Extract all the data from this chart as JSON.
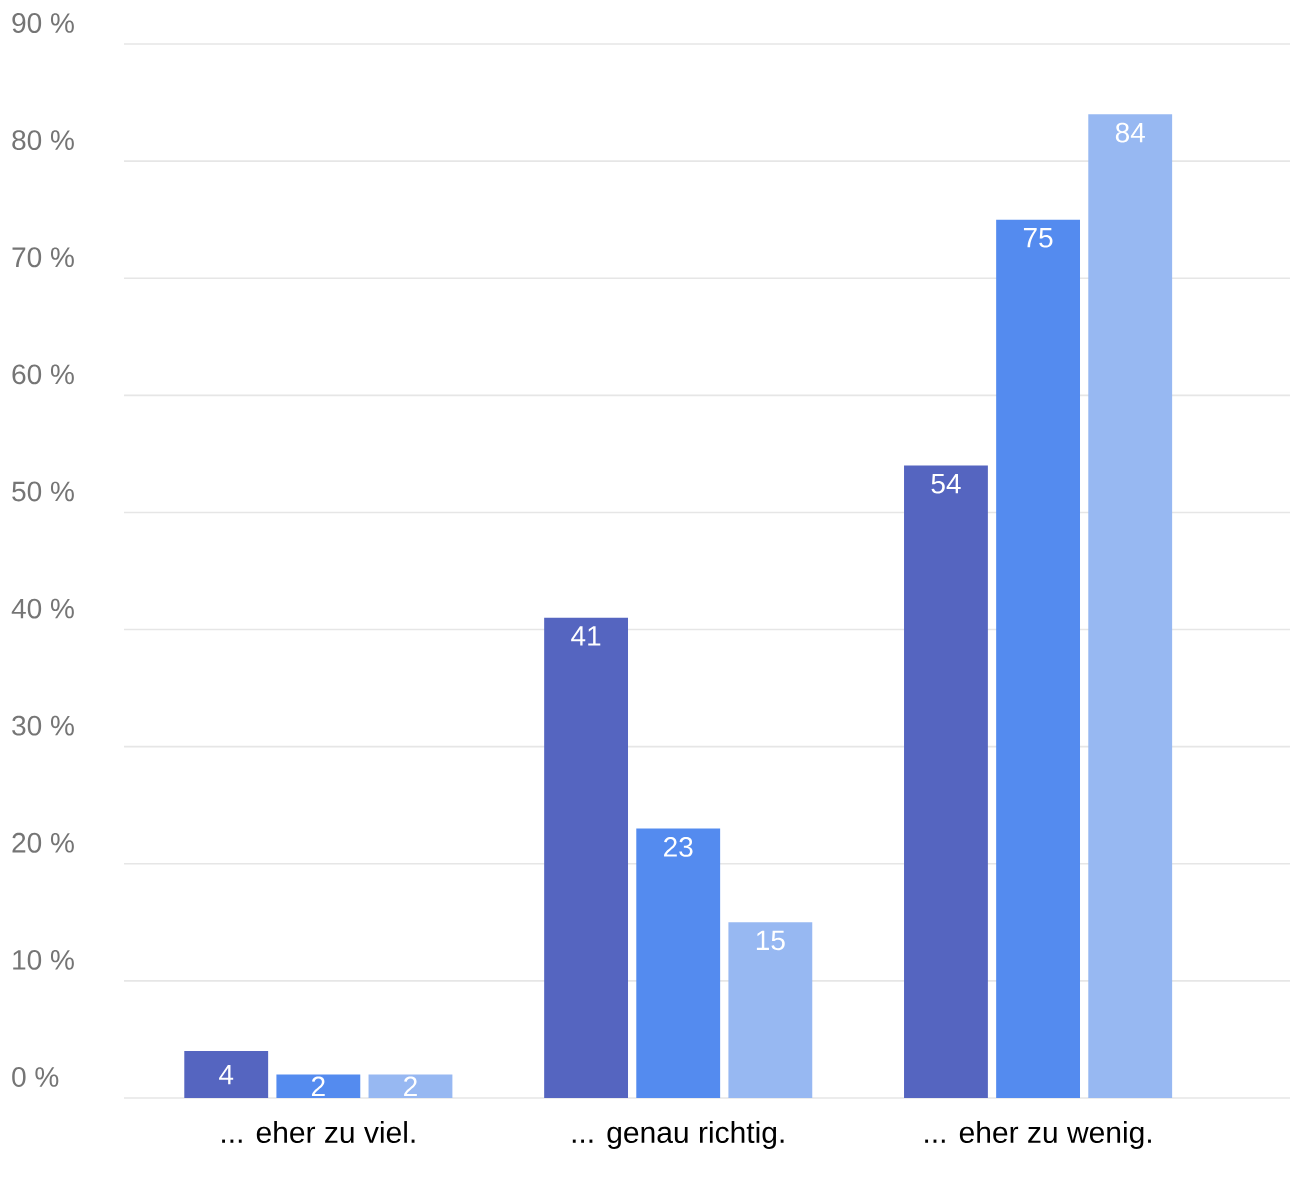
{
  "chart_data": {
    "type": "bar",
    "categories": [
      "... eher zu viel.",
      "... genau richtig.",
      "... eher zu wenig."
    ],
    "series": [
      {
        "color": "#5565c0",
        "values": [
          4,
          41,
          54
        ]
      },
      {
        "color": "#548bef",
        "values": [
          2,
          23,
          75
        ]
      },
      {
        "color": "#97b8f2",
        "values": [
          2,
          15,
          84
        ]
      }
    ],
    "ylim": [
      0,
      90
    ],
    "yticks": [
      {
        "value": 0,
        "label": "0 %"
      },
      {
        "value": 10,
        "label": "10 %"
      },
      {
        "value": 20,
        "label": "20 %"
      },
      {
        "value": 30,
        "label": "30 %"
      },
      {
        "value": 40,
        "label": "40 %"
      },
      {
        "value": 50,
        "label": "50 %"
      },
      {
        "value": 60,
        "label": "60 %"
      },
      {
        "value": 70,
        "label": "70 %"
      },
      {
        "value": 80,
        "label": "80 %"
      },
      {
        "value": 90,
        "label": "90 %"
      }
    ],
    "grid": "y",
    "data_labels": true
  }
}
